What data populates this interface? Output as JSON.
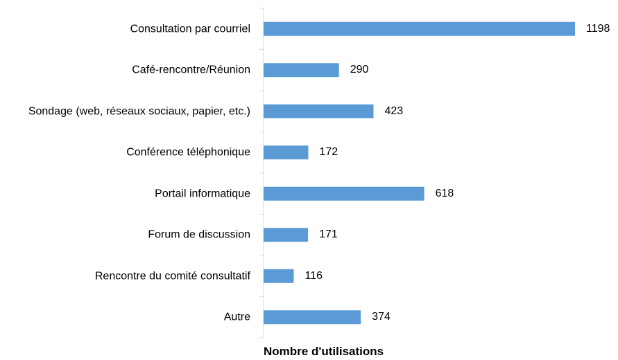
{
  "chart_data": {
    "type": "bar",
    "orientation": "horizontal",
    "x_label": "Nombre d'utilisations",
    "categories": [
      "Consultation par courriel",
      "Café-rencontre/Réunion",
      "Sondage (web, réseaux sociaux, papier, etc.)",
      "Conférence téléphonique",
      "Portail informatique",
      "Forum de discussion",
      "Rencontre du comité consultatif",
      "Autre"
    ],
    "values": [
      1198,
      290,
      423,
      172,
      618,
      171,
      116,
      374
    ],
    "color": "#5b9bd5"
  }
}
